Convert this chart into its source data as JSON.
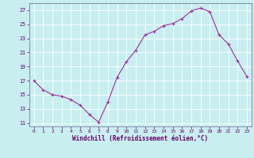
{
  "x": [
    0,
    1,
    2,
    3,
    4,
    5,
    6,
    7,
    8,
    9,
    10,
    11,
    12,
    13,
    14,
    15,
    16,
    17,
    18,
    19,
    20,
    21,
    22,
    23
  ],
  "y": [
    17.0,
    15.7,
    15.0,
    14.8,
    14.3,
    13.5,
    12.2,
    11.1,
    14.0,
    17.5,
    19.7,
    21.3,
    23.5,
    24.0,
    24.8,
    25.1,
    25.8,
    26.9,
    27.3,
    26.8,
    23.5,
    22.2,
    19.8,
    17.6
  ],
  "line_color": "#993399",
  "marker": "+",
  "marker_color": "#993399",
  "bg_color": "#c8eef0",
  "grid_color": "#ffffff",
  "xlabel": "Windchill (Refroidissement éolien,°C)",
  "xlabel_color": "#660066",
  "tick_color": "#660066",
  "yticks": [
    11,
    13,
    15,
    17,
    19,
    21,
    23,
    25,
    27
  ],
  "xticks": [
    0,
    1,
    2,
    3,
    4,
    5,
    6,
    7,
    8,
    9,
    10,
    11,
    12,
    13,
    14,
    15,
    16,
    17,
    18,
    19,
    20,
    21,
    22,
    23
  ],
  "ylim": [
    10.5,
    28.0
  ],
  "xlim": [
    -0.5,
    23.5
  ]
}
